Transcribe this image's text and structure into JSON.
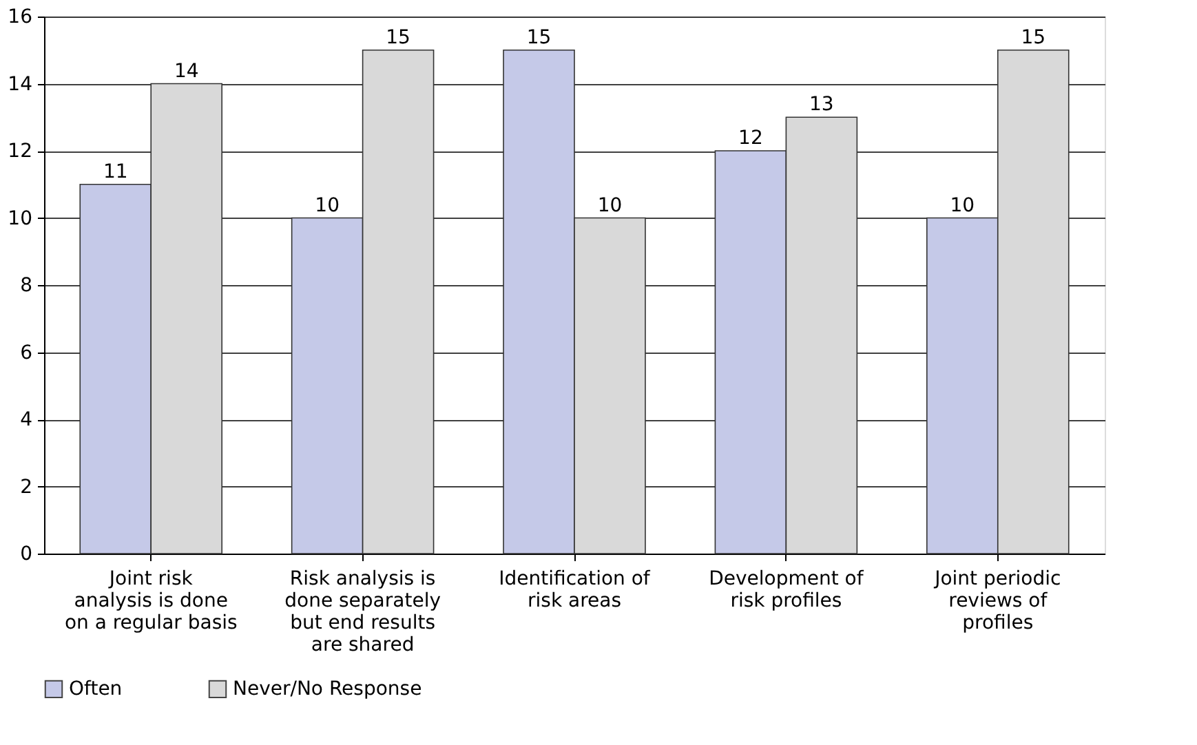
{
  "chart_data": {
    "type": "bar",
    "categories": [
      "Joint risk analysis is done on a regular basis",
      "Risk analysis is done separately but end results are shared",
      "Identification of risk areas",
      "Development of risk profiles",
      "Joint periodic reviews of profiles"
    ],
    "series": [
      {
        "name": "Often",
        "color": "#c5c9e8",
        "values": [
          11,
          10,
          15,
          12,
          10
        ]
      },
      {
        "name": "Never/No Response",
        "color": "#d9d9d9",
        "values": [
          14,
          15,
          10,
          13,
          15
        ]
      }
    ],
    "ylim": [
      0,
      16
    ],
    "yticks": [
      0,
      2,
      4,
      6,
      8,
      10,
      12,
      14,
      16
    ],
    "grid": "y",
    "data_labels": true,
    "legend": "bottom"
  }
}
